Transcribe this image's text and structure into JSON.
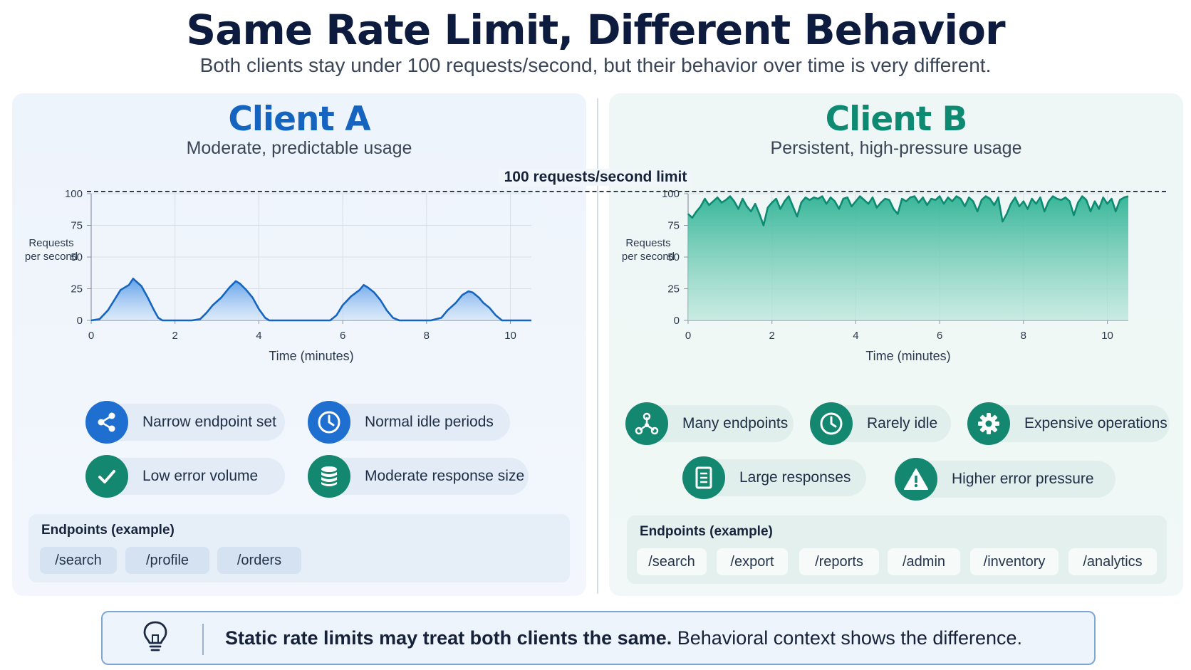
{
  "title": "Same Rate Limit, Different Behavior",
  "subtitle": "Both clients stay under 100 requests/second, but their behavior over time is very different.",
  "limit_label": "100 requests/second limit",
  "colors": {
    "client_a": "#1565c0",
    "client_b": "#0f8a72",
    "title": "#0d1b3e"
  },
  "client_a": {
    "name": "Client A",
    "subtitle": "Moderate, predictable usage",
    "traits": [
      {
        "label": "Narrow endpoint set",
        "icon": "share-nodes-icon"
      },
      {
        "label": "Normal idle periods",
        "icon": "clock-icon"
      },
      {
        "label": "Low error volume",
        "icon": "checkmark-icon"
      },
      {
        "label": "Moderate response size",
        "icon": "database-icon"
      }
    ],
    "endpoints_title": "Endpoints (example)",
    "endpoints": [
      "/search",
      "/profile",
      "/orders"
    ]
  },
  "client_b": {
    "name": "Client B",
    "subtitle": "Persistent, high-pressure usage",
    "traits": [
      {
        "label": "Many endpoints",
        "icon": "network-icon"
      },
      {
        "label": "Rarely idle",
        "icon": "clock-icon"
      },
      {
        "label": "Expensive operations",
        "icon": "gear-icon"
      },
      {
        "label": "Large responses",
        "icon": "document-icon"
      },
      {
        "label": "Higher error pressure",
        "icon": "warning-icon"
      }
    ],
    "endpoints_title": "Endpoints (example)",
    "endpoints": [
      "/search",
      "/export",
      "/reports",
      "/admin",
      "/inventory",
      "/analytics"
    ]
  },
  "banner": {
    "icon": "lightbulb-icon",
    "bold": "Static rate limits may treat both clients the same.",
    "rest": " Behavioral context shows the difference."
  },
  "chart_data": [
    {
      "type": "area",
      "series_name": "Client A",
      "ylabel": "Requests per second",
      "xlabel": "Time (minutes)",
      "xlim": [
        0,
        10.5
      ],
      "ylim": [
        0,
        100
      ],
      "x_ticks": [
        0,
        2,
        4,
        6,
        8,
        10
      ],
      "y_ticks": [
        0,
        25,
        50,
        75,
        100
      ],
      "grid": true,
      "color": "#1565c0",
      "x": [
        0,
        0.2,
        0.4,
        0.55,
        0.7,
        0.8,
        0.9,
        1.0,
        1.1,
        1.2,
        1.35,
        1.5,
        1.6,
        1.7,
        1.8,
        2.0,
        2.4,
        2.6,
        2.75,
        2.9,
        3.1,
        3.3,
        3.45,
        3.55,
        3.7,
        3.85,
        4.0,
        4.15,
        4.25,
        4.4,
        5.0,
        5.7,
        5.85,
        6.0,
        6.2,
        6.4,
        6.5,
        6.6,
        6.75,
        6.9,
        7.05,
        7.2,
        7.35,
        7.5,
        8.1,
        8.35,
        8.5,
        8.7,
        8.85,
        9.0,
        9.1,
        9.25,
        9.35,
        9.5,
        9.65,
        9.8,
        10.0,
        10.5
      ],
      "y": [
        0,
        1,
        8,
        16,
        24,
        26,
        28,
        33,
        30,
        27,
        18,
        8,
        2,
        0,
        0,
        0,
        0,
        1,
        6,
        12,
        18,
        26,
        31,
        29,
        24,
        18,
        9,
        2,
        0,
        0,
        0,
        0,
        4,
        12,
        19,
        24,
        28,
        26,
        22,
        16,
        8,
        2,
        0,
        0,
        0,
        2,
        8,
        14,
        20,
        23,
        22,
        18,
        14,
        10,
        4,
        0,
        0,
        0
      ]
    },
    {
      "type": "area",
      "series_name": "Client B",
      "ylabel": "Requests per second",
      "xlabel": "Time (minutes)",
      "xlim": [
        0,
        10.5
      ],
      "ylim": [
        0,
        100
      ],
      "x_ticks": [
        0,
        2,
        4,
        6,
        8,
        10
      ],
      "y_ticks": [
        0,
        25,
        50,
        75,
        100
      ],
      "grid": true,
      "color": "#0f8a72",
      "x": [
        0,
        0.1,
        0.2,
        0.3,
        0.4,
        0.5,
        0.6,
        0.7,
        0.8,
        0.9,
        1.0,
        1.1,
        1.2,
        1.3,
        1.4,
        1.5,
        1.6,
        1.7,
        1.8,
        1.9,
        2.0,
        2.1,
        2.2,
        2.3,
        2.4,
        2.5,
        2.6,
        2.7,
        2.8,
        2.9,
        3.0,
        3.1,
        3.2,
        3.3,
        3.4,
        3.5,
        3.6,
        3.7,
        3.8,
        3.9,
        4.0,
        4.1,
        4.2,
        4.3,
        4.4,
        4.5,
        4.6,
        4.7,
        4.8,
        4.9,
        5.0,
        5.1,
        5.2,
        5.3,
        5.4,
        5.5,
        5.6,
        5.7,
        5.8,
        5.9,
        6.0,
        6.1,
        6.2,
        6.3,
        6.4,
        6.5,
        6.6,
        6.7,
        6.8,
        6.9,
        7.0,
        7.1,
        7.2,
        7.3,
        7.4,
        7.5,
        7.6,
        7.7,
        7.8,
        7.9,
        8.0,
        8.1,
        8.2,
        8.3,
        8.4,
        8.5,
        8.6,
        8.7,
        8.8,
        8.9,
        9.0,
        9.1,
        9.2,
        9.3,
        9.4,
        9.5,
        9.6,
        9.7,
        9.8,
        9.9,
        10.0,
        10.1,
        10.2,
        10.3,
        10.4,
        10.5
      ],
      "y": [
        84,
        81,
        86,
        90,
        96,
        91,
        94,
        97,
        93,
        95,
        98,
        94,
        88,
        96,
        90,
        86,
        92,
        84,
        75,
        89,
        93,
        96,
        88,
        94,
        98,
        90,
        82,
        93,
        97,
        95,
        97,
        96,
        98,
        92,
        97,
        94,
        88,
        96,
        97,
        90,
        94,
        98,
        95,
        92,
        97,
        89,
        93,
        96,
        95,
        88,
        84,
        96,
        94,
        97,
        98,
        93,
        97,
        91,
        96,
        95,
        98,
        92,
        97,
        94,
        98,
        96,
        90,
        97,
        94,
        86,
        95,
        98,
        96,
        91,
        97,
        78,
        84,
        92,
        97,
        90,
        94,
        88,
        96,
        92,
        97,
        86,
        94,
        98,
        96,
        95,
        97,
        94,
        83,
        93,
        98,
        95,
        86,
        94,
        88,
        97,
        92,
        96,
        86,
        95,
        97,
        98
      ]
    }
  ]
}
